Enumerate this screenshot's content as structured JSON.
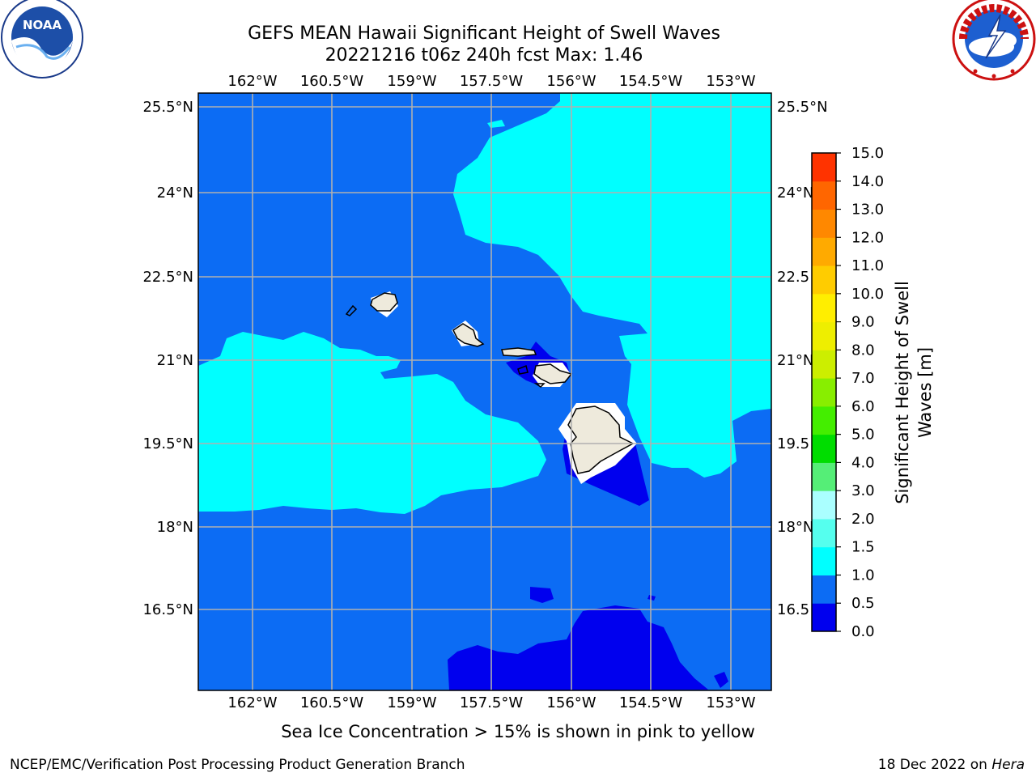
{
  "title": {
    "line1": "GEFS MEAN Hawaii Significant Height of Swell Waves",
    "line2": "20221216 t06z 240h fcst   Max: 1.46"
  },
  "logos": {
    "left": {
      "icon": "noaa-logo",
      "text": "NOAA",
      "ring_text": "NATIONAL OCEANIC AND ATMOSPHERIC ADMINISTRATION · U.S. DEPARTMENT OF COMMERCE"
    },
    "right": {
      "icon": "nws-logo",
      "ring_text": "NATIONAL WEATHER SERVICE"
    }
  },
  "map": {
    "lon_ticks": [
      "162°W",
      "160.5°W",
      "159°W",
      "157.5°W",
      "156°W",
      "154.5°W",
      "153°W"
    ],
    "lat_ticks": [
      "25.5°N",
      "24°N",
      "22.5°N",
      "21°N",
      "19.5°N",
      "18°N",
      "16.5°N"
    ],
    "right_lat_ticks": [
      "25.5°N",
      "24°N",
      "22.5",
      "21°N",
      "19.5",
      "18°N",
      "16.5"
    ],
    "colors": {
      "band_0_05": "#0000ee",
      "band_05_1": "#0c6cf4",
      "band_1_15": "#00ffff",
      "land": "#eeeadc",
      "grid": "#b0b0b0"
    }
  },
  "colorbar": {
    "label_line1": "Significant Height of Swell",
    "label_line2": "Waves [m]",
    "ticks": [
      "0.0",
      "0.5",
      "1.0",
      "1.5",
      "2.0",
      "3.0",
      "4.0",
      "5.0",
      "6.0",
      "7.0",
      "8.0",
      "9.0",
      "10.0",
      "11.0",
      "12.0",
      "13.0",
      "14.0",
      "15.0"
    ],
    "colors": [
      "#0000ee",
      "#0c6cf4",
      "#00ffff",
      "#55ffee",
      "#aaffff",
      "#55ee77",
      "#00dd00",
      "#44ee00",
      "#88ee00",
      "#ccee00",
      "#eeee00",
      "#ffee00",
      "#ffcc00",
      "#ffaa00",
      "#ff8800",
      "#ff6600",
      "#ff3300"
    ]
  },
  "notes": {
    "ice": "Sea Ice Concentration > 15% is shown in pink to yellow",
    "footer_left": "NCEP/EMC/Verification Post Processing Product Generation Branch",
    "footer_right_prefix": "18 Dec 2022 on ",
    "footer_right_host": "Hera"
  }
}
